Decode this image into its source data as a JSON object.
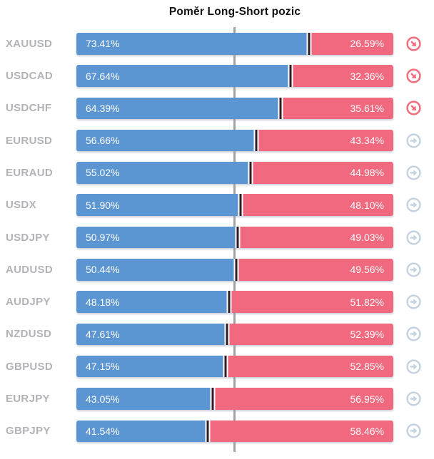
{
  "title": "Poměr Long-Short pozic",
  "colors": {
    "long_bar": "#5b96d3",
    "short_bar": "#f0697e",
    "boundary_divider": "#2f1c26",
    "center_line": "#a3a3a3",
    "pair_label": "#b2b3b7",
    "title_text": "#111111",
    "bar_text": "#ffffff",
    "icon_down_right": "#f26c7c",
    "icon_right": "#c5d3e1",
    "background": "#ffffff"
  },
  "chart_data": {
    "type": "bar",
    "stacked": true,
    "orientation": "horizontal",
    "title": "Poměr Long-Short pozic",
    "categories": [
      "XAUUSD",
      "USDCAD",
      "USDCHF",
      "EURUSD",
      "EURAUD",
      "USDX",
      "USDJPY",
      "AUDUSD",
      "AUDJPY",
      "NZDUSD",
      "GBPUSD",
      "EURJPY",
      "GBPJPY"
    ],
    "series": [
      {
        "name": "Long",
        "color": "#5b96d3",
        "values": [
          73.41,
          67.64,
          64.39,
          56.66,
          55.02,
          51.9,
          50.97,
          50.44,
          48.18,
          47.61,
          47.15,
          43.05,
          41.54
        ],
        "labels": [
          "73.41%",
          "67.64%",
          "64.39%",
          "56.66%",
          "55.02%",
          "51.90%",
          "50.97%",
          "50.44%",
          "48.18%",
          "47.61%",
          "47.15%",
          "43.05%",
          "41.54%"
        ]
      },
      {
        "name": "Short",
        "color": "#f0697e",
        "values": [
          26.59,
          32.36,
          35.61,
          43.34,
          44.98,
          48.1,
          49.03,
          49.56,
          51.82,
          52.39,
          52.85,
          56.95,
          58.46
        ],
        "labels": [
          "26.59%",
          "32.36%",
          "35.61%",
          "43.34%",
          "44.98%",
          "48.10%",
          "49.03%",
          "49.56%",
          "51.82%",
          "52.39%",
          "52.85%",
          "56.95%",
          "58.46%"
        ]
      }
    ],
    "row_icons": [
      "down-right",
      "down-right",
      "down-right",
      "right",
      "right",
      "right",
      "right",
      "right",
      "right",
      "right",
      "right",
      "right",
      "right"
    ],
    "axis": {
      "min": 0,
      "max": 100,
      "center_reference_line": 50,
      "gridlines": false
    },
    "legend": false
  }
}
